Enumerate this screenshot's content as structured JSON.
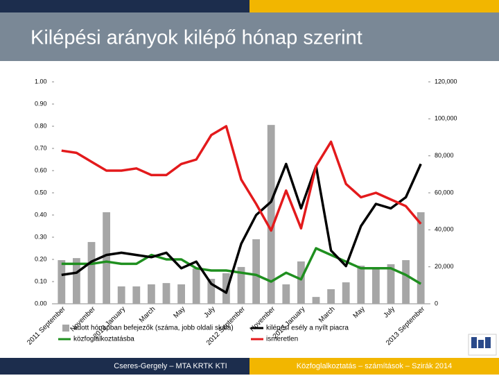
{
  "chart_data": {
    "type": "combo",
    "title": "Kilépési arányok kilépő hónap szerint",
    "footer_left": "Cseres-Gergely – MTA KRTK KTI",
    "footer_right": "Közfoglalkoztatás – számítások – Szirák 2014",
    "categories": [
      "2011 September",
      null,
      "November",
      null,
      "2012 January",
      null,
      "March",
      null,
      "May",
      null,
      "July",
      null,
      "2012 September",
      null,
      "November",
      null,
      "2013 January",
      null,
      "March",
      null,
      "May",
      null,
      "July",
      null,
      "2013 September"
    ],
    "ylim": [
      0,
      1
    ],
    "yticks": [
      {
        "value": 0,
        "label": "0.00"
      },
      {
        "value": 0.1,
        "label": "0.10"
      },
      {
        "value": 0.2,
        "label": "0.20"
      },
      {
        "value": 0.3,
        "label": "0.30"
      },
      {
        "value": 0.4,
        "label": "0.40"
      },
      {
        "value": 0.5,
        "label": "0.50"
      },
      {
        "value": 0.6,
        "label": "0.60"
      },
      {
        "value": 0.7,
        "label": "0.70"
      },
      {
        "value": 0.8,
        "label": "0.80"
      },
      {
        "value": 0.9,
        "label": "0.90"
      },
      {
        "value": 1,
        "label": "1.00"
      }
    ],
    "y2lim": [
      0,
      120000
    ],
    "y2ticks": [
      0,
      {
        "value": 20000,
        "label": "20,000"
      },
      {
        "value": 40000,
        "label": "40,000"
      },
      {
        "value": 60000,
        "label": "60,000"
      },
      {
        "value": 80000,
        "label": "80,000"
      },
      {
        "value": 100000,
        "label": "100,000"
      },
      {
        "value": 120000,
        "label": "120,000"
      }
    ],
    "series": [
      {
        "name": "adott hónapban befejezők (száma, jobb oldali skála)",
        "kind": "bar",
        "axis": "y2",
        "color": "#a6a6a6",
        "values": [
          23600,
          24700,
          33400,
          49500,
          9400,
          9400,
          10500,
          11200,
          10500,
          19100,
          13500,
          16500,
          19900,
          34900,
          96700,
          10500,
          22900,
          3700,
          7900,
          11600,
          20600,
          18700,
          21400,
          23600,
          49500
        ]
      },
      {
        "name": "közfoglalkoztatásba",
        "kind": "line",
        "color": "#1f8f1f",
        "values": [
          0.18,
          0.18,
          0.18,
          0.19,
          0.18,
          0.18,
          0.22,
          0.2,
          0.2,
          0.16,
          0.15,
          0.15,
          0.14,
          0.13,
          0.1,
          0.14,
          0.11,
          0.25,
          0.22,
          0.19,
          0.16,
          0.16,
          0.16,
          0.13,
          0.09
        ]
      },
      {
        "name": "kilépési esély a nyílt piacra",
        "kind": "line",
        "color": "#000000",
        "values": [
          0.13,
          0.14,
          0.19,
          0.22,
          0.23,
          0.22,
          0.21,
          0.23,
          0.16,
          0.19,
          0.09,
          0.05,
          0.27,
          0.4,
          0.46,
          0.63,
          0.43,
          0.62,
          0.24,
          0.17,
          0.35,
          0.45,
          0.43,
          0.48,
          0.63
        ]
      },
      {
        "name": "ismeretlen",
        "kind": "line",
        "color": "#e31a1c",
        "values": [
          0.69,
          0.68,
          0.64,
          0.6,
          0.6,
          0.61,
          0.58,
          0.58,
          0.63,
          0.65,
          0.76,
          0.8,
          0.56,
          0.45,
          0.33,
          0.51,
          0.34,
          0.62,
          0.73,
          0.54,
          0.48,
          0.5,
          0.47,
          0.44,
          0.36
        ]
      }
    ]
  }
}
